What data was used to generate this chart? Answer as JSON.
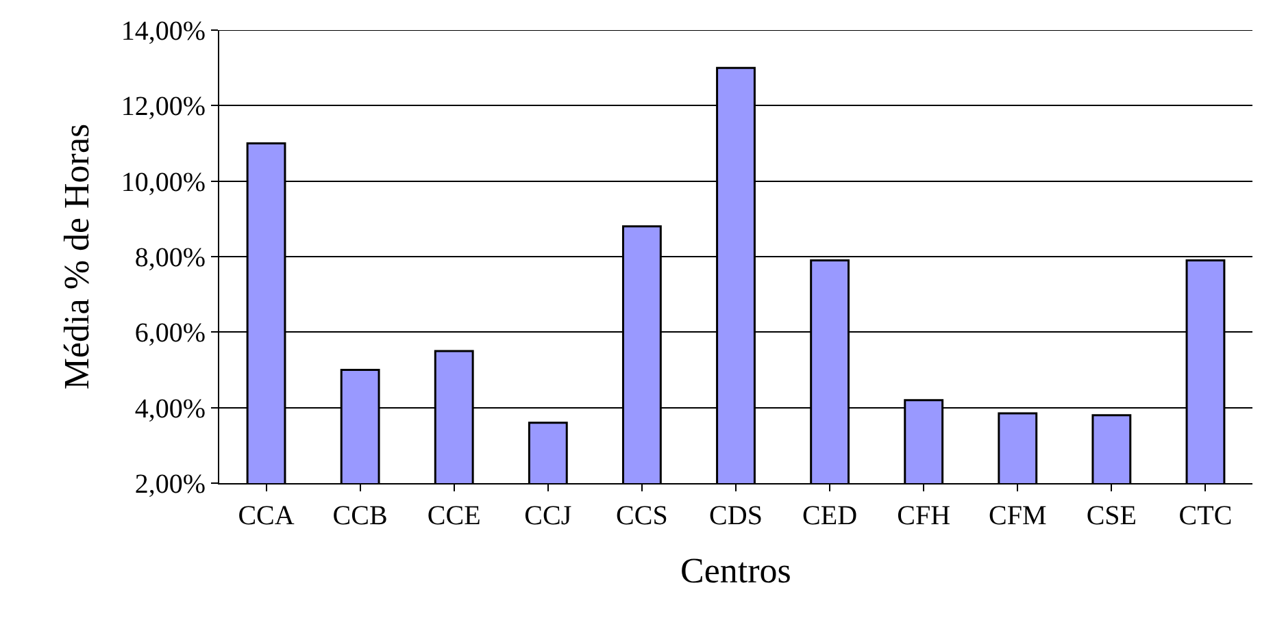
{
  "chart_data": {
    "type": "bar",
    "xlabel": "Centros",
    "ylabel": "Média % de Horas",
    "categories": [
      "CCA",
      "CCB",
      "CCE",
      "CCJ",
      "CCS",
      "CDS",
      "CED",
      "CFH",
      "CFM",
      "CSE",
      "CTC"
    ],
    "values": [
      11.0,
      5.0,
      5.5,
      3.6,
      8.8,
      13.0,
      7.9,
      4.2,
      3.85,
      3.8,
      7.9
    ],
    "color": "#9999ff",
    "ylim": [
      2,
      14
    ],
    "yticks": [
      {
        "value": 2,
        "label": "2,00%"
      },
      {
        "value": 4,
        "label": "4,00%"
      },
      {
        "value": 6,
        "label": "6,00%"
      },
      {
        "value": 8,
        "label": "8,00%"
      },
      {
        "value": 10,
        "label": "10,00%"
      },
      {
        "value": 12,
        "label": "12,00%"
      },
      {
        "value": 14,
        "label": "14,00%"
      }
    ],
    "grid": "y"
  }
}
